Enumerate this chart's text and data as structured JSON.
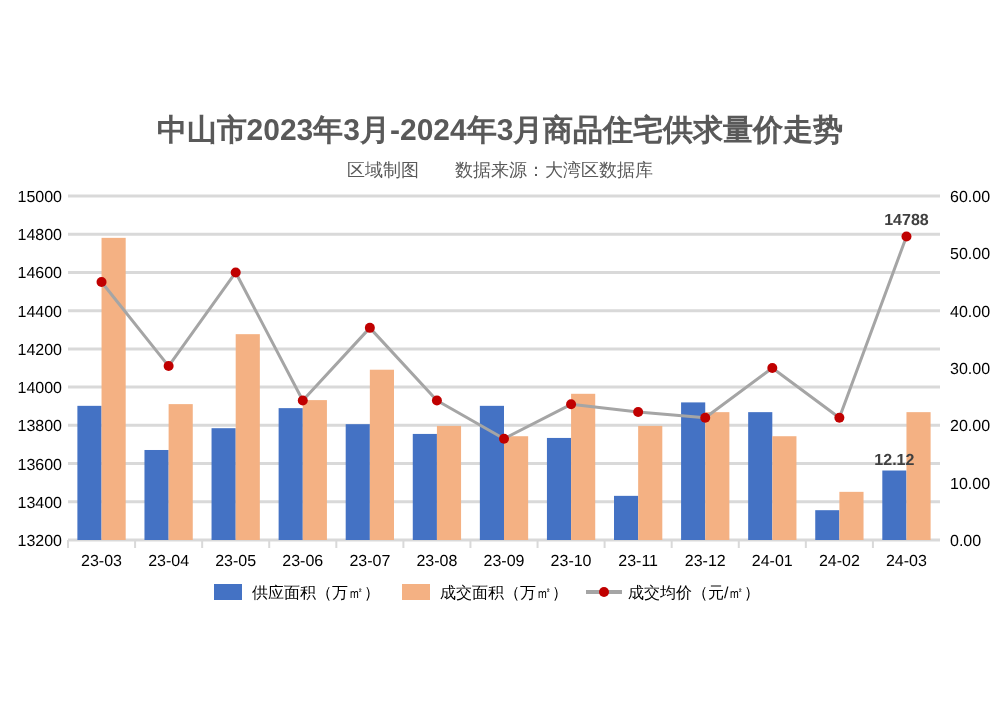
{
  "chart_data": {
    "type": "bar",
    "title": "中山市2023年3月-2024年3月商品住宅供求量价走势",
    "subtitle": "区域制图　　数据来源：大湾区数据库",
    "categories": [
      "23-03",
      "23-04",
      "23-05",
      "23-06",
      "23-07",
      "23-08",
      "23-09",
      "23-10",
      "23-11",
      "23-12",
      "24-01",
      "24-02",
      "24-03"
    ],
    "series": [
      {
        "name": "供应面积（万㎡）",
        "axis": "y2",
        "color": "#4472c4",
        "values": [
          23.4,
          15.7,
          19.5,
          23.0,
          20.2,
          18.5,
          23.4,
          17.8,
          7.7,
          24.0,
          22.3,
          5.2,
          12.12
        ],
        "value_labels": [
          null,
          null,
          null,
          null,
          null,
          null,
          null,
          null,
          null,
          null,
          null,
          null,
          "12.12"
        ]
      },
      {
        "name": "成交面积（万㎡）",
        "axis": "y2",
        "color": "#f4b183",
        "values": [
          52.7,
          23.7,
          35.9,
          24.4,
          29.7,
          19.9,
          18.1,
          25.5,
          19.9,
          22.3,
          18.1,
          8.4,
          22.3
        ]
      },
      {
        "name": "成交均价（元/㎡）",
        "type": "line",
        "axis": "y",
        "color": "#a5a5a5",
        "marker": "circle",
        "values": [
          14550,
          14110,
          14600,
          13930,
          14310,
          13930,
          13730,
          13910,
          13870,
          13840,
          14100,
          13840,
          14788
        ],
        "value_labels": [
          null,
          null,
          null,
          null,
          null,
          null,
          null,
          null,
          null,
          null,
          null,
          null,
          "14788"
        ]
      }
    ],
    "ylim": [
      13200,
      15000
    ],
    "yticks": [
      13200,
      13400,
      13600,
      13800,
      14000,
      14200,
      14400,
      14600,
      14800,
      15000
    ],
    "y2lim": [
      0,
      60
    ],
    "y2ticks": [
      {
        "value": 0,
        "label": "0.00"
      },
      {
        "value": 10,
        "label": "10.00"
      },
      {
        "value": 20,
        "label": "20.00"
      },
      {
        "value": 30,
        "label": "30.00"
      },
      {
        "value": 40,
        "label": "40.00"
      },
      {
        "value": 50,
        "label": "50.00"
      },
      {
        "value": 60,
        "label": "60.00"
      }
    ],
    "grid": "y",
    "legend": "bottom"
  }
}
